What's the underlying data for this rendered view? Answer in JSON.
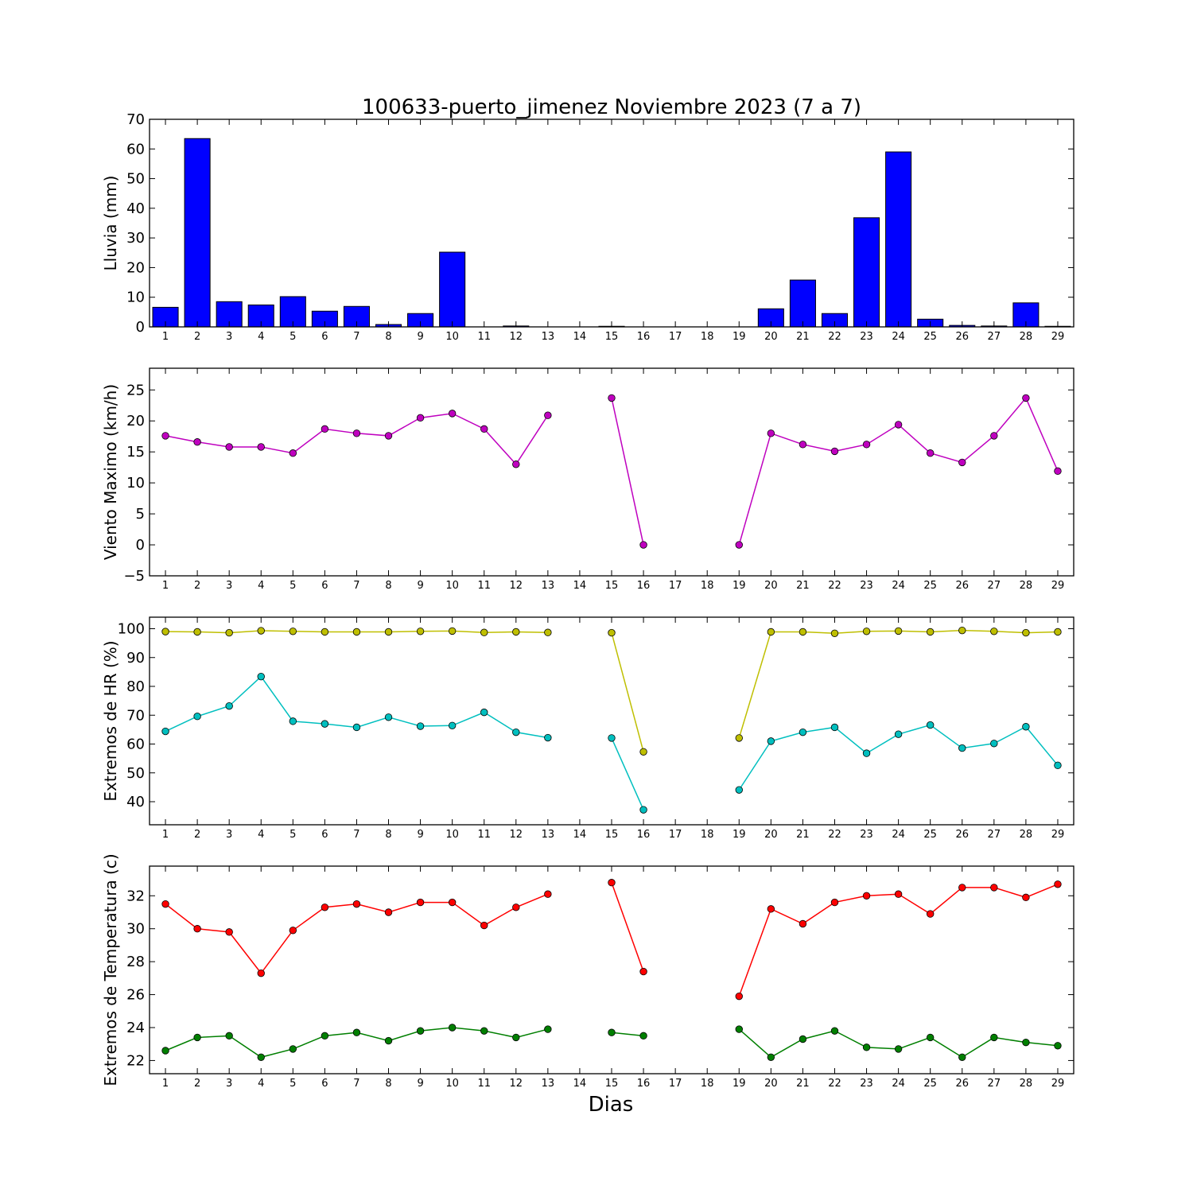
{
  "title": "100633-puerto_jimenez Noviembre 2023  (7 a 7)",
  "xlabel": "Dias",
  "chart_data": [
    {
      "type": "bar",
      "ylabel": "Lluvia (mm)",
      "ylim": [
        0,
        70
      ],
      "yticks": [
        0,
        10,
        20,
        30,
        40,
        50,
        60,
        70
      ],
      "x": [
        1,
        2,
        3,
        4,
        5,
        6,
        7,
        8,
        9,
        10,
        11,
        12,
        13,
        14,
        15,
        16,
        17,
        18,
        19,
        20,
        21,
        22,
        23,
        24,
        25,
        26,
        27,
        28,
        29
      ],
      "series": [
        {
          "color": "#0000ff",
          "values": [
            6.6,
            63.5,
            8.5,
            7.4,
            10.2,
            5.3,
            6.9,
            0.8,
            4.5,
            25.2,
            0,
            0.3,
            0,
            0,
            0.2,
            0,
            0,
            0,
            0,
            6.1,
            15.8,
            4.5,
            36.8,
            59.0,
            2.6,
            0.5,
            0.3,
            8.1,
            0.2
          ]
        }
      ]
    },
    {
      "type": "line",
      "ylabel": "Viento Maximo (km/h)",
      "ylim": [
        -5,
        28.5
      ],
      "yticks": [
        -5,
        0,
        5,
        10,
        15,
        20,
        25
      ],
      "ytick_labels": [
        "−5",
        "0",
        "5",
        "10",
        "15",
        "20",
        "25"
      ],
      "x": [
        1,
        2,
        3,
        4,
        5,
        6,
        7,
        8,
        9,
        10,
        11,
        12,
        13,
        14,
        15,
        16,
        17,
        18,
        19,
        20,
        21,
        22,
        23,
        24,
        25,
        26,
        27,
        28,
        29
      ],
      "series": [
        {
          "color": "#bf00bf",
          "values": [
            17.6,
            16.6,
            15.8,
            15.8,
            14.8,
            18.7,
            18.0,
            17.6,
            20.5,
            21.2,
            18.7,
            13.0,
            20.9,
            null,
            23.7,
            0,
            null,
            null,
            0,
            18.0,
            16.2,
            15.1,
            16.2,
            19.4,
            14.8,
            13.3,
            17.6,
            23.7,
            11.9
          ]
        }
      ]
    },
    {
      "type": "line",
      "ylabel": "Extremos de HR (%)",
      "ylim": [
        32,
        104
      ],
      "yticks": [
        40,
        50,
        60,
        70,
        80,
        90,
        100
      ],
      "x": [
        1,
        2,
        3,
        4,
        5,
        6,
        7,
        8,
        9,
        10,
        11,
        12,
        13,
        14,
        15,
        16,
        17,
        18,
        19,
        20,
        21,
        22,
        23,
        24,
        25,
        26,
        27,
        28,
        29
      ],
      "series": [
        {
          "color": "#bfbf00",
          "values": [
            99.0,
            98.9,
            98.6,
            99.3,
            99.1,
            98.9,
            98.9,
            98.9,
            99.1,
            99.2,
            98.7,
            98.9,
            98.7,
            null,
            98.6,
            57.3,
            null,
            null,
            62.1,
            98.9,
            98.9,
            98.4,
            99.1,
            99.2,
            98.9,
            99.4,
            99.1,
            98.6,
            98.9
          ]
        },
        {
          "color": "#00bfbf",
          "values": [
            64.4,
            69.6,
            73.2,
            83.4,
            67.9,
            67.0,
            65.8,
            69.3,
            66.2,
            66.4,
            71.0,
            64.1,
            62.2,
            null,
            62.1,
            37.2,
            null,
            null,
            44.1,
            61.0,
            64.1,
            65.8,
            56.8,
            63.4,
            66.6,
            58.6,
            60.2,
            66.0,
            52.6
          ]
        }
      ]
    },
    {
      "type": "line",
      "ylabel": "Extremos de Temperatura (c)",
      "ylim": [
        21.2,
        33.8
      ],
      "yticks": [
        22,
        24,
        26,
        28,
        30,
        32
      ],
      "x": [
        1,
        2,
        3,
        4,
        5,
        6,
        7,
        8,
        9,
        10,
        11,
        12,
        13,
        14,
        15,
        16,
        17,
        18,
        19,
        20,
        21,
        22,
        23,
        24,
        25,
        26,
        27,
        28,
        29
      ],
      "series": [
        {
          "color": "#ff0000",
          "values": [
            31.5,
            30.0,
            29.8,
            27.3,
            29.9,
            31.3,
            31.5,
            31.0,
            31.6,
            31.6,
            30.2,
            31.3,
            32.1,
            null,
            32.8,
            27.4,
            null,
            null,
            25.9,
            31.2,
            30.3,
            31.6,
            32.0,
            32.1,
            30.9,
            32.5,
            32.5,
            31.9,
            32.7
          ]
        },
        {
          "color": "#007f00",
          "values": [
            22.6,
            23.4,
            23.5,
            22.2,
            22.7,
            23.5,
            23.7,
            23.2,
            23.8,
            24.0,
            23.8,
            23.4,
            23.9,
            null,
            23.7,
            23.5,
            null,
            null,
            23.9,
            22.2,
            23.3,
            23.8,
            22.8,
            22.7,
            23.4,
            22.2,
            23.4,
            23.1,
            22.9
          ]
        }
      ]
    }
  ]
}
